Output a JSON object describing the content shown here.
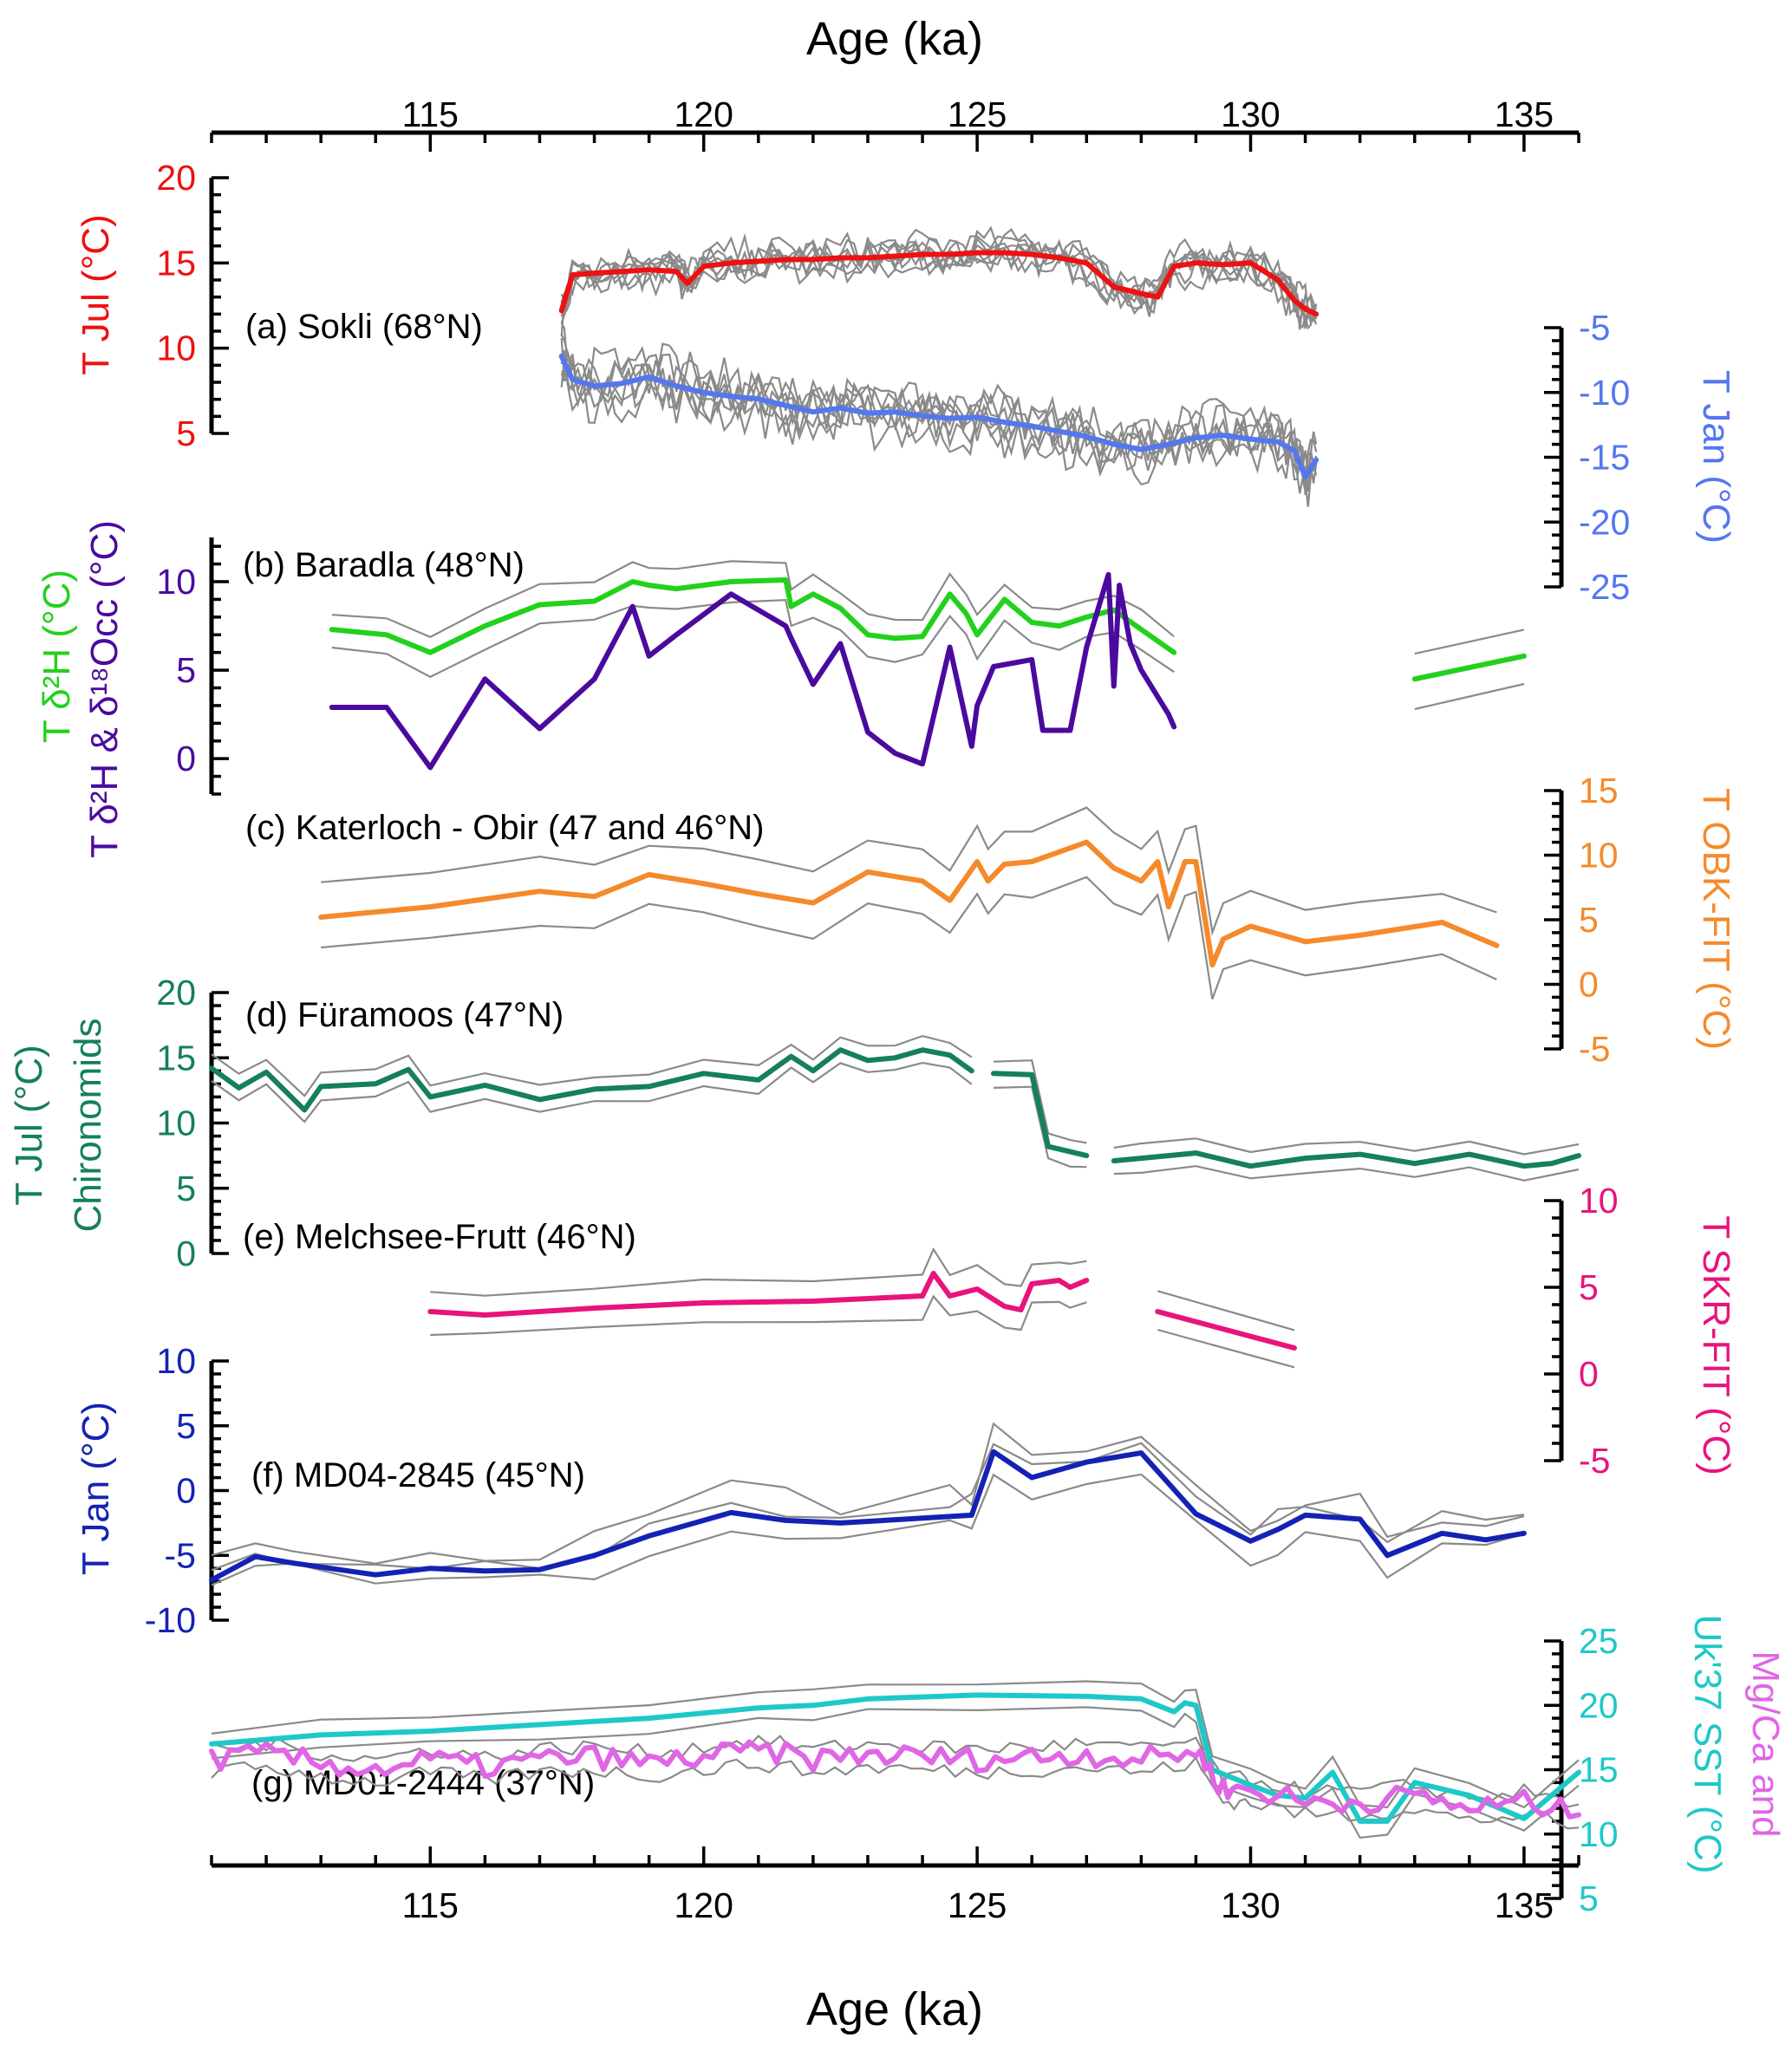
{
  "chart_data": {
    "type": "line",
    "title": "",
    "xlabel": "Age (ka)",
    "xlim": [
      111,
      136
    ],
    "xticks": [
      115,
      120,
      125,
      130,
      135
    ],
    "grid": false,
    "colors": {
      "sokli_jul": "#ee1111",
      "sokli_jan": "#5577ee",
      "baradla_d2h": "#22d11b",
      "baradla_both": "#4b0a9e",
      "katerloch": "#f58a2c",
      "furamoos": "#15805a",
      "melchsee": "#e8137c",
      "md04": "#1422b4",
      "md01_uk": "#1fc8c8",
      "md01_mg": "#e066e6",
      "ensemble": "#8a8a8a"
    },
    "panels": [
      {
        "id": "a",
        "label": "(a) Sokli (68°N)",
        "axes": [
          {
            "side": "left",
            "label": "T Jul (°C)",
            "ylim": [
              5,
              20
            ],
            "ticks": [
              5,
              10,
              15,
              20
            ],
            "color": "#ee1111"
          },
          {
            "side": "right",
            "label": "T Jan (°C)",
            "ylim": [
              -25,
              -5
            ],
            "ticks": [
              -5,
              -10,
              -15,
              -20,
              -25
            ],
            "color": "#5577ee"
          }
        ],
        "series": [
          {
            "name": "T Jul Sokli",
            "axis": 0,
            "x": [
              117.4,
              117.6,
              118.0,
              118.5,
              119.0,
              119.5,
              119.7,
              120.0,
              120.5,
              121.0,
              121.5,
              122.0,
              122.5,
              123.0,
              123.5,
              124.0,
              124.5,
              125.0,
              125.5,
              126.0,
              126.5,
              127.0,
              127.5,
              128.0,
              128.3,
              128.6,
              129.0,
              129.5,
              130.0,
              130.5,
              130.8,
              131.0,
              131.2
            ],
            "y": [
              12.2,
              14.3,
              14.4,
              14.5,
              14.6,
              14.5,
              13.8,
              14.8,
              15.0,
              15.1,
              15.2,
              15.2,
              15.3,
              15.3,
              15.4,
              15.5,
              15.5,
              15.6,
              15.6,
              15.5,
              15.3,
              15.0,
              13.6,
              13.2,
              13.0,
              14.8,
              15.0,
              14.9,
              15.0,
              14.0,
              12.8,
              12.3,
              12.0
            ]
          },
          {
            "name": "T Jan Sokli",
            "axis": 1,
            "x": [
              117.4,
              117.6,
              118.0,
              118.5,
              119.0,
              119.5,
              120.0,
              120.5,
              121.0,
              121.5,
              122.0,
              122.5,
              123.0,
              123.5,
              124.0,
              124.5,
              125.0,
              125.5,
              126.0,
              126.5,
              127.0,
              127.5,
              128.0,
              128.5,
              129.0,
              129.5,
              130.0,
              130.5,
              130.8,
              131.0,
              131.2
            ],
            "y": [
              -7.2,
              -9.0,
              -9.5,
              -9.3,
              -8.8,
              -9.5,
              -10.0,
              -10.3,
              -10.5,
              -11.0,
              -11.5,
              -11.2,
              -11.6,
              -11.5,
              -11.8,
              -12.0,
              -11.9,
              -12.3,
              -12.6,
              -13.0,
              -13.4,
              -14.0,
              -14.4,
              -14.0,
              -13.5,
              -13.3,
              -13.6,
              -13.8,
              -14.5,
              -16.5,
              -15.2
            ]
          }
        ]
      },
      {
        "id": "b",
        "label": "(b) Baradla (48°N)",
        "axes": [
          {
            "side": "left",
            "label": "T δ²H (°C)",
            "ylim": [
              -2,
              12.5
            ],
            "ticks": [
              0,
              5,
              10
            ],
            "color": "#22d11b"
          },
          {
            "side": "left",
            "label": "T δ²H & δ¹⁸Occ (°C)",
            "color": "#4b0a9e"
          }
        ],
        "series": [
          {
            "name": "T δ2H",
            "axis": 0,
            "x": [
              113.2,
              114.2,
              115.0,
              116.0,
              117.0,
              118.0,
              118.7,
              119.0,
              119.5,
              120.5,
              121.5,
              121.6,
              122.0,
              122.5,
              123.0,
              123.5,
              124.0,
              124.5,
              124.8,
              125.0,
              125.5,
              126.0,
              126.5,
              127.0,
              127.5,
              128.0,
              128.6
            ],
            "y": [
              7.3,
              7.0,
              6.0,
              7.5,
              8.7,
              8.9,
              10.0,
              9.8,
              9.6,
              10.0,
              10.1,
              8.6,
              9.3,
              8.5,
              7.0,
              6.8,
              6.9,
              9.3,
              8.2,
              7.0,
              9.0,
              7.7,
              7.5,
              8.0,
              8.4,
              7.3,
              6.0
            ]
          },
          {
            "name": "T δ2H (2nd section)",
            "axis": 0,
            "x": [
              133.0,
              135.0
            ],
            "y": [
              4.5,
              5.8
            ]
          },
          {
            "name": "T δ2H & δ18Occ",
            "axis": 0,
            "x": [
              113.2,
              114.2,
              115.0,
              116.0,
              117.0,
              118.0,
              118.7,
              119.0,
              119.5,
              120.5,
              121.5,
              121.6,
              122.0,
              122.5,
              123.0,
              123.5,
              124.0,
              124.5,
              124.7,
              124.9,
              125.0,
              125.3,
              126.0,
              126.2,
              126.7,
              127.0,
              127.4,
              127.5,
              127.6,
              127.8,
              128.0,
              128.5,
              128.6
            ],
            "y": [
              2.9,
              2.9,
              -0.5,
              4.5,
              1.7,
              4.5,
              8.6,
              5.8,
              7.0,
              9.3,
              7.5,
              6.8,
              4.2,
              6.5,
              1.5,
              0.3,
              -0.3,
              6.3,
              3.5,
              0.7,
              3.0,
              5.2,
              5.6,
              1.6,
              1.6,
              6.3,
              10.4,
              4.1,
              9.8,
              6.5,
              5.0,
              2.5,
              1.8
            ]
          }
        ]
      },
      {
        "id": "c",
        "label": "(c) Katerloch - Obir (47 and 46°N)",
        "axes": [
          {
            "side": "right",
            "label": "T OBK-FIT (°C)",
            "ylim": [
              -5,
              15
            ],
            "ticks": [
              15,
              10,
              5,
              0,
              -5
            ],
            "color": "#f58a2c"
          }
        ],
        "series": [
          {
            "name": "T OBK-FIT",
            "axis": 0,
            "x": [
              113.0,
              115.0,
              117.0,
              118.0,
              119.0,
              120.0,
              121.0,
              122.0,
              123.0,
              124.0,
              124.5,
              125.0,
              125.2,
              125.5,
              126.0,
              127.0,
              127.5,
              128.0,
              128.3,
              128.5,
              128.8,
              129.0,
              129.3,
              129.5,
              130.0,
              131.0,
              132.0,
              133.5,
              134.5
            ],
            "y": [
              5.2,
              6.0,
              7.2,
              6.8,
              8.5,
              7.8,
              7.0,
              6.3,
              8.7,
              8.0,
              6.5,
              9.5,
              8.0,
              9.3,
              9.5,
              11.0,
              9.0,
              8.0,
              9.5,
              6.0,
              9.5,
              9.5,
              1.5,
              3.5,
              4.5,
              3.3,
              3.8,
              4.8,
              3.0
            ]
          }
        ]
      },
      {
        "id": "d",
        "label": "(d) Füramoos (47°N)",
        "axes": [
          {
            "side": "left",
            "label": "T Jul (°C) Chironomids",
            "ylim": [
              0,
              20
            ],
            "ticks": [
              0,
              5,
              10,
              15,
              20
            ],
            "color": "#15805a"
          }
        ],
        "series": [
          {
            "name": "T Jul Chironomids",
            "axis": 0,
            "x": [
              111.0,
              111.5,
              112.0,
              112.7,
              113.0,
              114.0,
              114.6,
              115.0,
              116.0,
              117.0,
              118.0,
              119.0,
              120.0,
              121.0,
              121.6,
              122.0,
              122.5,
              123.0,
              123.5,
              124.0,
              124.5,
              124.9
            ],
            "y": [
              14.2,
              12.7,
              13.9,
              11.0,
              12.8,
              13.0,
              14.1,
              12.0,
              12.9,
              11.8,
              12.6,
              12.8,
              13.8,
              13.3,
              15.1,
              14.0,
              15.6,
              14.8,
              15.0,
              15.6,
              15.2,
              14.0
            ]
          },
          {
            "name": "T Jul Chironomids (2)",
            "axis": 0,
            "x": [
              125.3,
              126.0,
              126.3,
              126.7,
              127.0
            ],
            "y": [
              13.8,
              13.7,
              8.2,
              7.8,
              7.5
            ]
          },
          {
            "name": "T Jul Chironomids (3)",
            "axis": 0,
            "x": [
              127.5,
              128.0,
              129.0,
              130.0,
              131.0,
              132.0,
              133.0,
              134.0,
              135.0,
              135.5,
              136.0
            ],
            "y": [
              7.1,
              7.3,
              7.7,
              6.7,
              7.3,
              7.6,
              6.9,
              7.6,
              6.7,
              6.9,
              7.5
            ]
          }
        ]
      },
      {
        "id": "e",
        "label": "(e) Melchsee-Frutt (46°N)",
        "axes": [
          {
            "side": "right",
            "label": "T SKR-FIT (°C)",
            "ylim": [
              -5,
              10
            ],
            "ticks": [
              10,
              5,
              0,
              -5
            ],
            "color": "#e8137c"
          }
        ],
        "series": [
          {
            "name": "T SKR-FIT",
            "axis": 0,
            "x": [
              115.0,
              116.0,
              118.0,
              120.0,
              122.0,
              124.0,
              124.2,
              124.5,
              125.0,
              125.5,
              125.8,
              126.0,
              126.5,
              126.7,
              127.0
            ],
            "y": [
              3.6,
              3.4,
              3.8,
              4.1,
              4.2,
              4.5,
              5.8,
              4.5,
              4.9,
              3.9,
              3.7,
              5.2,
              5.4,
              5.0,
              5.4
            ]
          },
          {
            "name": "T SKR-FIT (2)",
            "axis": 0,
            "x": [
              128.3,
              130.8
            ],
            "y": [
              3.6,
              1.5
            ]
          }
        ]
      },
      {
        "id": "f",
        "label": "(f) MD04-2845 (45°N)",
        "axes": [
          {
            "side": "left",
            "label": "T Jan (°C)",
            "ylim": [
              -10,
              10
            ],
            "ticks": [
              -10,
              -5,
              0,
              5,
              10
            ],
            "color": "#1422b4"
          }
        ],
        "series": [
          {
            "name": "T Jan MD04-2845",
            "axis": 0,
            "x": [
              111.0,
              111.8,
              112.5,
              114.0,
              115.0,
              116.0,
              117.0,
              118.0,
              119.0,
              120.5,
              121.5,
              122.5,
              124.5,
              124.9,
              125.3,
              126.0,
              127.0,
              128.0,
              129.0,
              130.0,
              130.5,
              131.0,
              132.0,
              132.5,
              133.5,
              134.3,
              135.0
            ],
            "y": [
              -6.9,
              -5.1,
              -5.6,
              -6.5,
              -6.0,
              -6.2,
              -6.1,
              -5.0,
              -3.5,
              -1.7,
              -2.3,
              -2.5,
              -2.0,
              -1.9,
              3.0,
              1.0,
              2.2,
              2.9,
              -1.8,
              -3.9,
              -3.0,
              -1.9,
              -2.2,
              -5.0,
              -3.3,
              -3.8,
              -3.3
            ]
          }
        ]
      },
      {
        "id": "g",
        "label": "(g) MD01-2444 (37°N)",
        "axes": [
          {
            "side": "right",
            "label": "Mg/Ca and Uk'37 SST (°C)",
            "ylim": [
              5,
              25
            ],
            "ticks": [
              25,
              20,
              15,
              10,
              5
            ],
            "color": "#1fc8c8"
          }
        ],
        "series": [
          {
            "name": "Uk'37 SST",
            "axis": 0,
            "x": [
              111.0,
              113.0,
              115.0,
              117.0,
              119.0,
              121.0,
              122.0,
              123.0,
              125.0,
              127.0,
              128.0,
              128.6,
              128.8,
              129.0,
              129.3,
              130.0,
              130.5,
              131.0,
              131.5,
              132.0,
              132.5,
              133.0,
              134.0,
              135.0,
              136.0
            ],
            "y": [
              17.0,
              17.7,
              18.0,
              18.5,
              19.0,
              19.8,
              20.0,
              20.5,
              20.8,
              20.7,
              20.5,
              19.5,
              20.2,
              20.0,
              15.0,
              13.8,
              13.0,
              12.8,
              14.8,
              11.0,
              11.0,
              14.0,
              13.0,
              11.2,
              14.8
            ]
          },
          {
            "name": "Mg/Ca SST",
            "axis": 0,
            "x": [
              111.0,
              112.0,
              113.0,
              114.0,
              115.0,
              116.0,
              117.0,
              118.0,
              119.0,
              120.0,
              121.0,
              122.0,
              123.0,
              124.0,
              125.0,
              126.0,
              127.0,
              128.0,
              129.0,
              129.5,
              130.0,
              131.0,
              132.0,
              133.0,
              134.0,
              135.0,
              136.0
            ],
            "y": [
              15.8,
              16.2,
              15.5,
              15.0,
              15.8,
              15.2,
              15.8,
              16.0,
              15.5,
              16.0,
              16.5,
              15.8,
              16.2,
              16.0,
              15.8,
              16.0,
              16.2,
              15.8,
              16.5,
              13.5,
              13.5,
              12.5,
              12.5,
              13.0,
              12.0,
              12.5,
              11.5
            ]
          }
        ]
      }
    ]
  }
}
